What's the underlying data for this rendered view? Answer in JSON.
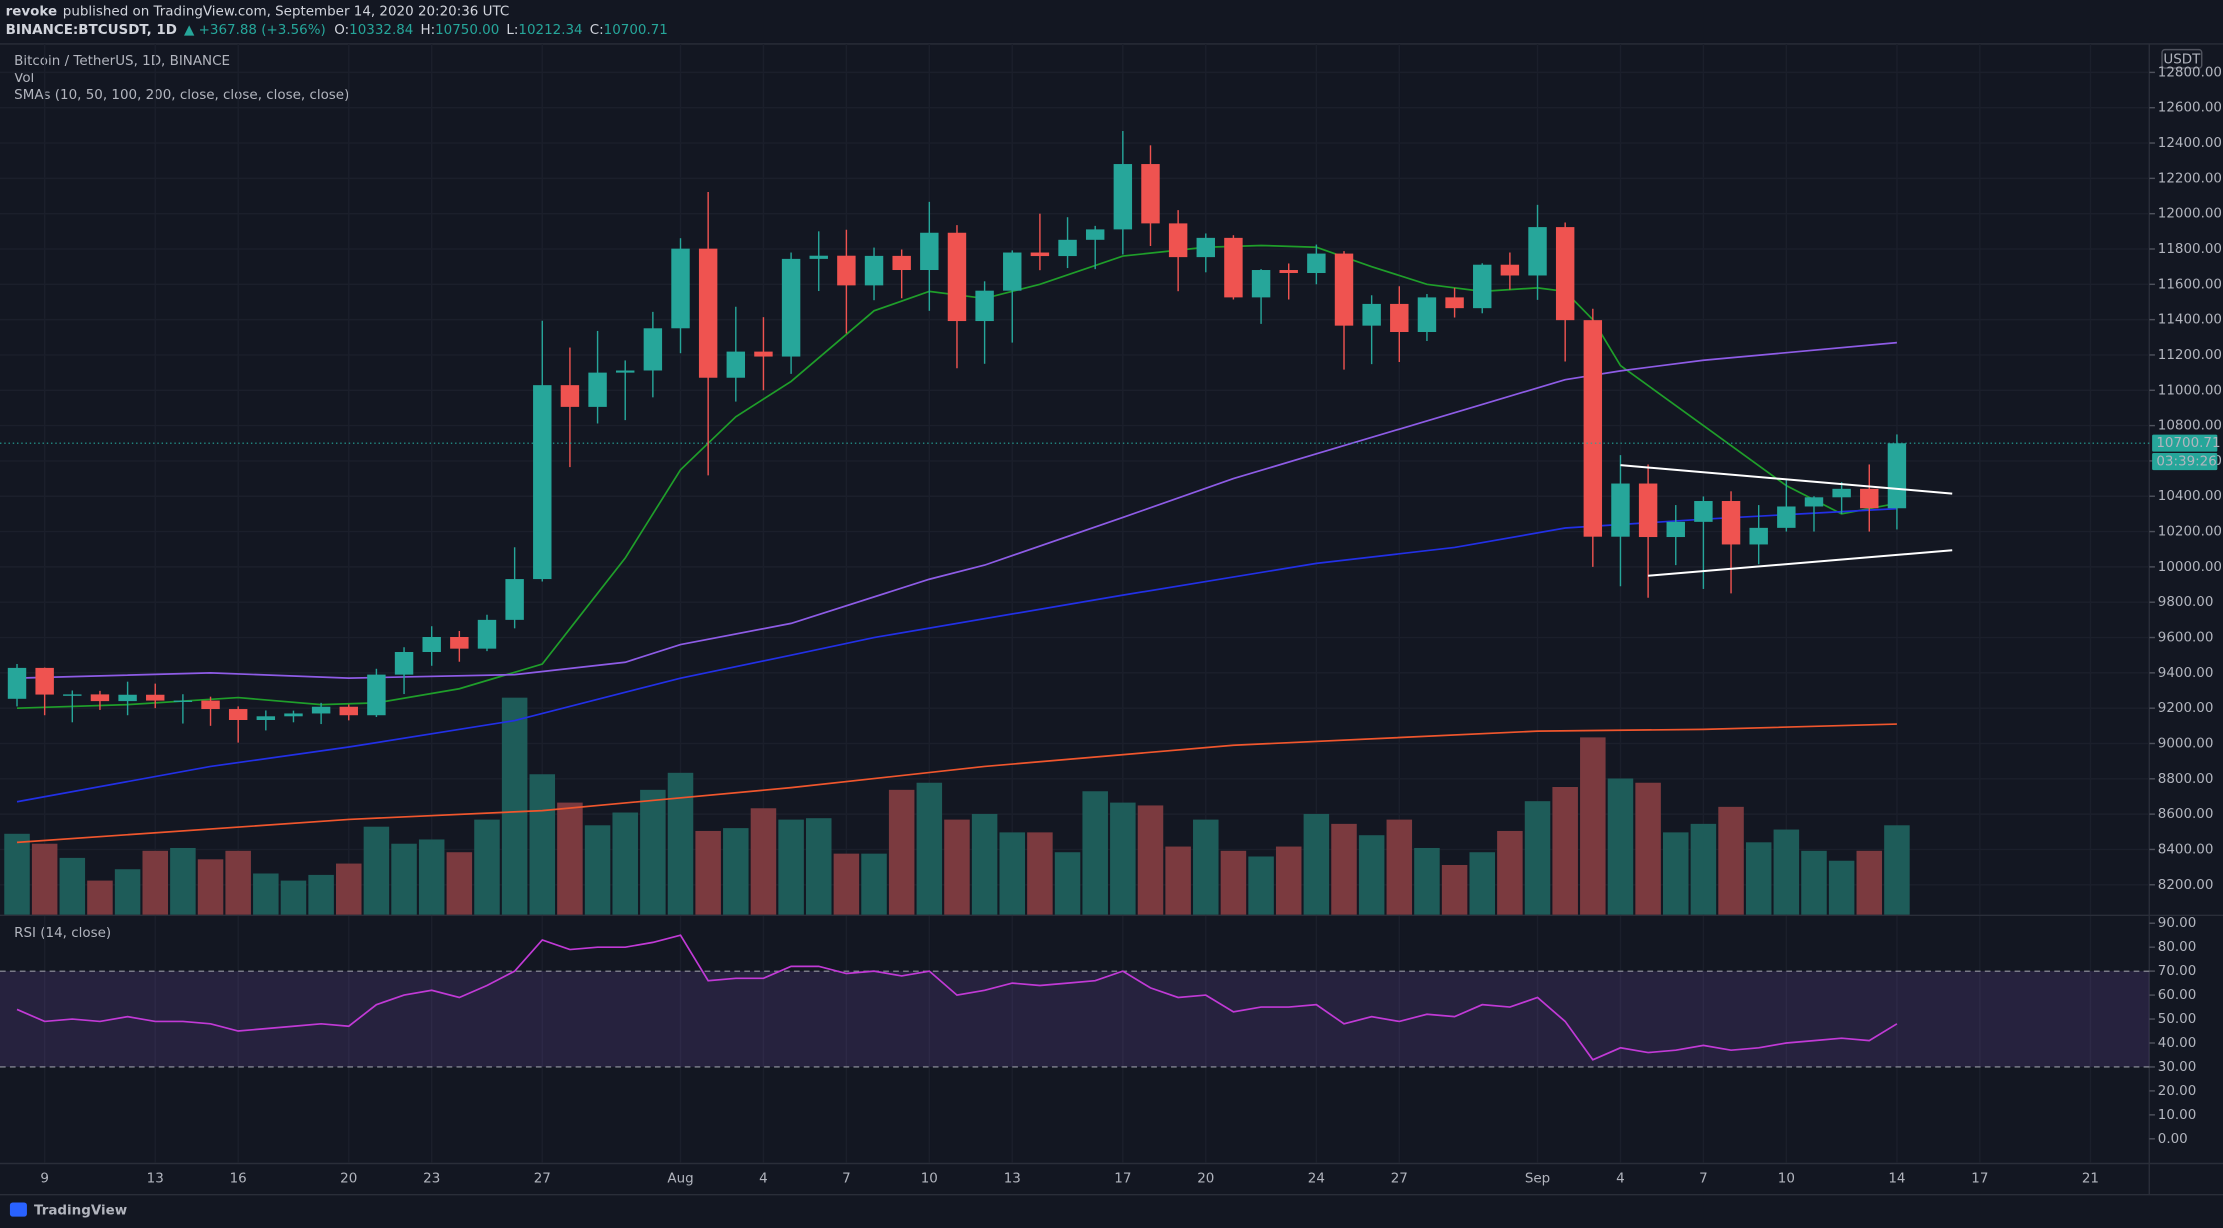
{
  "header": {
    "author": "revoke",
    "published": "published on TradingView.com, September 14, 2020 20:20:36 UTC",
    "symbol": "BINANCE:BTCUSDT, 1D",
    "change": "▲ +367.88 (+3.56%)",
    "ohlc": [
      {
        "label": "O:",
        "value": "10332.84"
      },
      {
        "label": "H:",
        "value": "10750.00"
      },
      {
        "label": "L:",
        "value": "10212.34"
      },
      {
        "label": "C:",
        "value": "10700.71"
      }
    ]
  },
  "chart_data": [
    {
      "type": "candlestick",
      "title": "Bitcoin / TetherUS, 1D, BINANCE",
      "volume_label": "Vol",
      "sma_label": "SMAs (10, 50, 100, 200, close, close, close, close)",
      "currency": "USDT",
      "countdown": "03:39:26",
      "last_price": 10700.71,
      "up_color": "#26a69a",
      "down_color": "#ef5350",
      "volume_up_color": "#1e5c59",
      "volume_down_color": "#7b3a3f",
      "categories": [
        "Jul 8",
        "Jul 9",
        "Jul 10",
        "Jul 11",
        "Jul 12",
        "Jul 13",
        "Jul 14",
        "Jul 15",
        "Jul 16",
        "Jul 17",
        "Jul 18",
        "Jul 19",
        "Jul 20",
        "Jul 21",
        "Jul 22",
        "Jul 23",
        "Jul 24",
        "Jul 25",
        "Jul 26",
        "Jul 27",
        "Jul 28",
        "Jul 29",
        "Jul 30",
        "Jul 31",
        "Aug 1",
        "Aug 2",
        "Aug 3",
        "Aug 4",
        "Aug 5",
        "Aug 6",
        "Aug 7",
        "Aug 8",
        "Aug 9",
        "Aug 10",
        "Aug 11",
        "Aug 12",
        "Aug 13",
        "Aug 14",
        "Aug 15",
        "Aug 16",
        "Aug 17",
        "Aug 18",
        "Aug 19",
        "Aug 20",
        "Aug 21",
        "Aug 22",
        "Aug 23",
        "Aug 24",
        "Aug 25",
        "Aug 26",
        "Aug 27",
        "Aug 28",
        "Aug 29",
        "Aug 30",
        "Aug 31",
        "Sep 1",
        "Sep 2",
        "Sep 3",
        "Sep 4",
        "Sep 5",
        "Sep 6",
        "Sep 7",
        "Sep 8",
        "Sep 9",
        "Sep 10",
        "Sep 11",
        "Sep 12",
        "Sep 13",
        "Sep 14"
      ],
      "open": [
        9253,
        9428,
        9277,
        9278,
        9240,
        9276,
        9243,
        9243,
        9195,
        9133,
        9154,
        9170,
        9208,
        9160,
        9390,
        9518,
        9603,
        9537,
        9700,
        9931,
        11029,
        10906,
        11100,
        11112,
        11351,
        11802,
        11071,
        11219,
        11191,
        11744,
        11762,
        11594,
        11761,
        11681,
        11892,
        11392,
        11564,
        11780,
        11760,
        11852,
        11911,
        12281,
        11945,
        11754,
        11863,
        11526,
        11681,
        11664,
        11774,
        11366,
        11489,
        11330,
        11526,
        11465,
        11711,
        11650,
        11924,
        11397,
        10171,
        10472,
        10169,
        10255,
        10373,
        10127,
        10221,
        10342,
        10394,
        10442,
        10332
      ],
      "high": [
        9450,
        9430,
        9300,
        9298,
        9350,
        9339,
        9279,
        9265,
        9210,
        9187,
        9186,
        9230,
        9221,
        9423,
        9545,
        9664,
        9637,
        9729,
        10111,
        11394,
        11242,
        11336,
        11169,
        11444,
        11861,
        12123,
        11473,
        11414,
        11780,
        11900,
        11909,
        11808,
        11797,
        12067,
        11935,
        11617,
        11792,
        12000,
        11980,
        11931,
        12468,
        12387,
        12020,
        11888,
        11878,
        11686,
        11718,
        11825,
        11788,
        11538,
        11589,
        11545,
        11580,
        11719,
        11780,
        12050,
        11950,
        11462,
        10633,
        10580,
        10350,
        10399,
        10428,
        10350,
        10500,
        10400,
        10480,
        10580,
        10750
      ],
      "low": [
        9210,
        9160,
        9120,
        9190,
        9160,
        9200,
        9113,
        9100,
        9005,
        9074,
        9120,
        9110,
        9131,
        9150,
        9280,
        9440,
        9463,
        9523,
        9652,
        9917,
        10565,
        10812,
        10831,
        10960,
        11210,
        10518,
        10936,
        11000,
        11093,
        11562,
        11322,
        11510,
        11521,
        11450,
        11125,
        11150,
        11270,
        11680,
        11692,
        11686,
        11769,
        11817,
        11561,
        11668,
        11514,
        11376,
        11514,
        11600,
        11117,
        11148,
        11160,
        11279,
        11412,
        11436,
        11570,
        11512,
        11163,
        10000,
        9890,
        9825,
        10010,
        9875,
        9850,
        10015,
        10200,
        10200,
        10300,
        10200,
        10212
      ],
      "close": [
        9428,
        9277,
        9278,
        9240,
        9276,
        9243,
        9243,
        9195,
        9133,
        9154,
        9170,
        9208,
        9160,
        9390,
        9518,
        9603,
        9537,
        9700,
        9931,
        11029,
        10906,
        11100,
        11112,
        11351,
        11802,
        11071,
        11219,
        11191,
        11744,
        11762,
        11594,
        11761,
        11681,
        11892,
        11392,
        11564,
        11780,
        11760,
        11852,
        11911,
        12281,
        11945,
        11754,
        11863,
        11526,
        11681,
        11664,
        11774,
        11366,
        11489,
        11330,
        11526,
        11465,
        11711,
        11650,
        11924,
        11397,
        10171,
        10472,
        10169,
        10255,
        10373,
        10127,
        10221,
        10342,
        10394,
        10442,
        10332,
        10700
      ],
      "volume": [
        57,
        50,
        40,
        24,
        32,
        45,
        47,
        39,
        45,
        29,
        24,
        28,
        36,
        62,
        50,
        53,
        44,
        67,
        153,
        99,
        79,
        63,
        72,
        88,
        100,
        59,
        61,
        75,
        67,
        68,
        43,
        43,
        88,
        93,
        67,
        71,
        58,
        58,
        44,
        87,
        79,
        77,
        48,
        67,
        45,
        41,
        48,
        71,
        64,
        56,
        67,
        47,
        35,
        44,
        59,
        80,
        90,
        125,
        96,
        93,
        58,
        64,
        76,
        51,
        60,
        45,
        38,
        45,
        63
      ],
      "volume_ylim": [
        0,
        614
      ],
      "sma": [
        {
          "color": "#1f9e2a",
          "x": [
            "Jul 8",
            "Jul 12",
            "Jul 16",
            "Jul 19",
            "Jul 21",
            "Jul 24",
            "Jul 27",
            "Jul 28",
            "Jul 30",
            "Aug 1",
            "Aug 3",
            "Aug 5",
            "Aug 8",
            "Aug 10",
            "Aug 12",
            "Aug 14",
            "Aug 17",
            "Aug 20",
            "Aug 22",
            "Aug 24",
            "Aug 26",
            "Aug 28",
            "Aug 30",
            "Sep 1",
            "Sep 2",
            "Sep 3",
            "Sep 4",
            "Sep 7",
            "Sep 10",
            "Sep 12",
            "Sep 14"
          ],
          "values": [
            9200,
            9220,
            9260,
            9220,
            9230,
            9310,
            9450,
            9650,
            10050,
            10550,
            10850,
            11050,
            11450,
            11560,
            11520,
            11600,
            11760,
            11810,
            11820,
            11810,
            11700,
            11600,
            11560,
            11580,
            11560,
            11400,
            11140,
            10800,
            10460,
            10300,
            10360
          ]
        },
        {
          "color": "#8e5ce6",
          "x": [
            "Jul 8",
            "Jul 15",
            "Jul 20",
            "Jul 26",
            "Jul 30",
            "Aug 1",
            "Aug 5",
            "Aug 10",
            "Aug 12",
            "Aug 17",
            "Aug 21",
            "Aug 24",
            "Aug 27",
            "Aug 30",
            "Sep 2",
            "Sep 4",
            "Sep 7",
            "Sep 14"
          ],
          "values": [
            9370,
            9400,
            9370,
            9390,
            9460,
            9560,
            9680,
            9930,
            10010,
            10280,
            10500,
            10640,
            10780,
            10920,
            11060,
            11110,
            11170,
            11270
          ]
        },
        {
          "color": "#2230e6",
          "x": [
            "Jul 8",
            "Jul 15",
            "Jul 20",
            "Jul 26",
            "Aug 1",
            "Aug 5",
            "Aug 8",
            "Aug 17",
            "Aug 24",
            "Aug 29",
            "Sep 2",
            "Sep 7",
            "Sep 14"
          ],
          "values": [
            8670,
            8870,
            8980,
            9130,
            9370,
            9500,
            9600,
            9840,
            10020,
            10110,
            10220,
            10270,
            10330
          ]
        },
        {
          "color": "#f0562d",
          "x": [
            "Jul 8",
            "Jul 20",
            "Jul 27",
            "Aug 5",
            "Aug 12",
            "Aug 21",
            "Sep 1",
            "Sep 7",
            "Sep 14"
          ],
          "values": [
            8440,
            8570,
            8620,
            8750,
            8870,
            8990,
            9070,
            9080,
            9110
          ]
        }
      ],
      "trendlines": [
        {
          "color": "#ffffff",
          "x": [
            "Sep 4",
            "Sep 16"
          ],
          "values": [
            10576,
            10415
          ]
        },
        {
          "color": "#ffffff",
          "x": [
            "Sep 5",
            "Sep 16"
          ],
          "values": [
            9950,
            10094
          ]
        }
      ],
      "ylim": [
        8031,
        12961
      ],
      "yticks": [
        {
          "value": 8200,
          "label": "8200.00"
        },
        {
          "value": 8400,
          "label": "8400.00"
        },
        {
          "value": 8600,
          "label": "8600.00"
        },
        {
          "value": 8800,
          "label": "8800.00"
        },
        {
          "value": 9000,
          "label": "9000.00"
        },
        {
          "value": 9200,
          "label": "9200.00"
        },
        {
          "value": 9400,
          "label": "9400.00"
        },
        {
          "value": 9600,
          "label": "9600.00"
        },
        {
          "value": 9800,
          "label": "9800.00"
        },
        {
          "value": 10000,
          "label": "10000.00"
        },
        {
          "value": 10200,
          "label": "10200.00"
        },
        {
          "value": 10400,
          "label": "10400.00"
        },
        {
          "value": 10600,
          "label": "10600.00"
        },
        {
          "value": 10800,
          "label": "10800.00"
        },
        {
          "value": 11000,
          "label": "11000.00"
        },
        {
          "value": 11200,
          "label": "11200.00"
        },
        {
          "value": 11400,
          "label": "11400.00"
        },
        {
          "value": 11600,
          "label": "11600.00"
        },
        {
          "value": 11800,
          "label": "11800.00"
        },
        {
          "value": 12000,
          "label": "12000.00"
        },
        {
          "value": 12200,
          "label": "12200.00"
        },
        {
          "value": 12400,
          "label": "12400.00"
        },
        {
          "value": 12600,
          "label": "12600.00"
        },
        {
          "value": 12800,
          "label": "12800.00"
        }
      ],
      "xticks": [
        {
          "value": "Jul 9",
          "label": "9"
        },
        {
          "value": "Jul 13",
          "label": "13"
        },
        {
          "value": "Jul 16",
          "label": "16"
        },
        {
          "value": "Jul 20",
          "label": "20"
        },
        {
          "value": "Jul 23",
          "label": "23"
        },
        {
          "value": "Jul 27",
          "label": "27"
        },
        {
          "value": "Aug 1",
          "label": "Aug"
        },
        {
          "value": "Aug 4",
          "label": "4"
        },
        {
          "value": "Aug 7",
          "label": "7"
        },
        {
          "value": "Aug 10",
          "label": "10"
        },
        {
          "value": "Aug 13",
          "label": "13"
        },
        {
          "value": "Aug 17",
          "label": "17"
        },
        {
          "value": "Aug 20",
          "label": "20"
        },
        {
          "value": "Aug 24",
          "label": "24"
        },
        {
          "value": "Aug 27",
          "label": "27"
        },
        {
          "value": "Sep 1",
          "label": "Sep"
        },
        {
          "value": "Sep 4",
          "label": "4"
        },
        {
          "value": "Sep 7",
          "label": "7"
        },
        {
          "value": "Sep 10",
          "label": "10"
        },
        {
          "value": "Sep 14",
          "label": "14"
        },
        {
          "value": "Sep 17",
          "label": "17"
        },
        {
          "value": "Sep 21",
          "label": "21"
        }
      ],
      "grid": true
    },
    {
      "type": "line",
      "title": "RSI (14, close)",
      "color": "#c13ad6",
      "band": [
        30,
        70
      ],
      "band_color": "#7e57c2",
      "values": [
        54,
        49,
        50,
        49,
        51,
        49,
        49,
        48,
        45,
        46,
        47,
        48,
        47,
        56,
        60,
        62,
        59,
        64,
        70,
        83,
        79,
        80,
        80,
        82,
        85,
        66,
        67,
        67,
        72,
        72,
        69,
        70,
        68,
        70,
        60,
        62,
        65,
        64,
        65,
        66,
        70,
        63,
        59,
        60,
        53,
        55,
        55,
        56,
        48,
        51,
        49,
        52,
        51,
        56,
        55,
        59,
        49,
        33,
        38,
        36,
        37,
        39,
        37,
        38,
        40,
        41,
        42,
        41,
        48
      ],
      "ylim": [
        -10,
        93
      ],
      "yticks": [
        {
          "value": 0,
          "label": "0.00"
        },
        {
          "value": 10,
          "label": "10.00"
        },
        {
          "value": 20,
          "label": "20.00"
        },
        {
          "value": 30,
          "label": "30.00"
        },
        {
          "value": 40,
          "label": "40.00"
        },
        {
          "value": 50,
          "label": "50.00"
        },
        {
          "value": 60,
          "label": "60.00"
        },
        {
          "value": 70,
          "label": "70.00"
        },
        {
          "value": 80,
          "label": "80.00"
        },
        {
          "value": 90,
          "label": "90.00"
        }
      ]
    }
  ],
  "footer": {
    "brand": "TradingView"
  }
}
